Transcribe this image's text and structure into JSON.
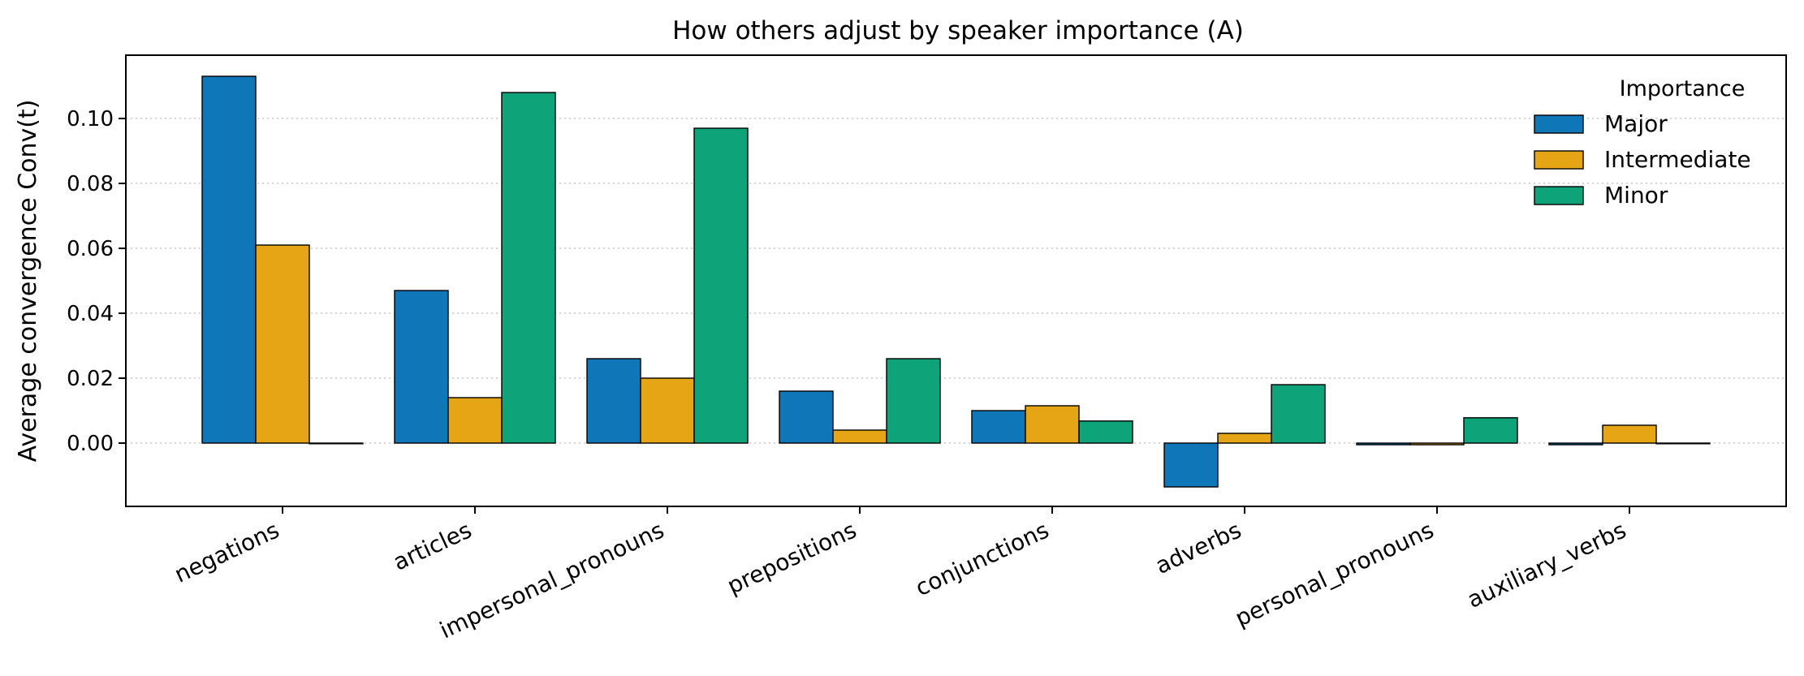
{
  "chart_data": {
    "type": "bar",
    "title": "How others adjust by speaker importance (A)",
    "xlabel": "",
    "ylabel": "Average convergence  Conv(t)",
    "ylim": [
      -0.0195,
      0.1195
    ],
    "yticks": [
      0.0,
      0.02,
      0.04,
      0.06,
      0.08,
      0.1
    ],
    "ytick_labels": [
      "0.00",
      "0.02",
      "0.04",
      "0.06",
      "0.08",
      "0.10"
    ],
    "grid": "horizontal-dotted",
    "legend": {
      "title": "Importance",
      "placement": "top-right"
    },
    "categories": [
      "negations",
      "articles",
      "impersonal_pronouns",
      "prepositions",
      "conjunctions",
      "adverbs",
      "personal_pronouns",
      "auxiliary_verbs"
    ],
    "series": [
      {
        "name": "Major",
        "color": "#0f76b7",
        "values": [
          0.113,
          0.047,
          0.026,
          0.016,
          0.01,
          -0.0135,
          -0.0005,
          -0.0005
        ]
      },
      {
        "name": "Intermediate",
        "color": "#e6a514",
        "values": [
          0.061,
          0.014,
          0.02,
          0.004,
          0.0115,
          0.003,
          -0.0005,
          0.0055
        ]
      },
      {
        "name": "Minor",
        "color": "#0fa37a",
        "values": [
          0.0,
          0.108,
          0.097,
          0.026,
          0.0068,
          0.018,
          0.0078,
          0.0
        ]
      }
    ]
  }
}
